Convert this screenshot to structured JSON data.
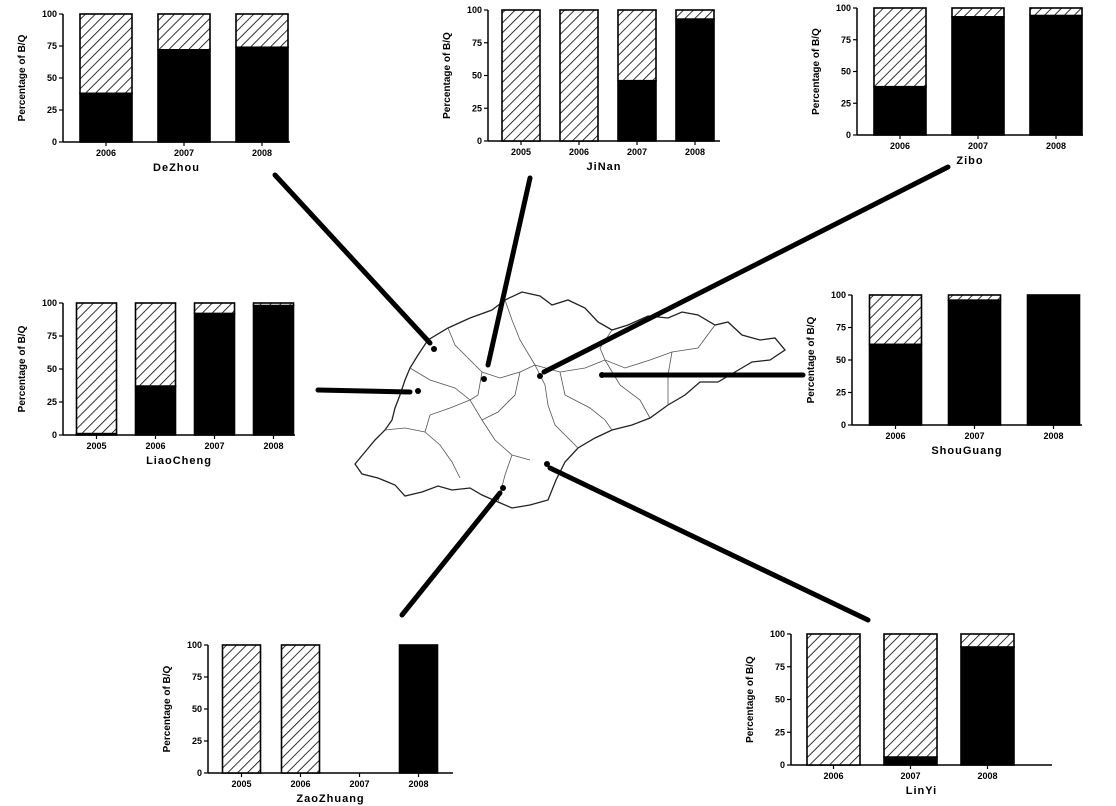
{
  "map": {
    "region": "Shandong province outline"
  },
  "legend_note": "",
  "chart_data": [
    {
      "type": "bar",
      "stacked": true,
      "title": "DeZhou",
      "ylabel": "Percentage of B/Q",
      "ylim": [
        0,
        100
      ],
      "yticks": [
        0,
        25,
        50,
        75,
        100
      ],
      "categories": [
        "2006",
        "2007",
        "2008"
      ],
      "series": [
        {
          "fill": "solid",
          "values": [
            38,
            72,
            74
          ]
        },
        {
          "fill": "hatched",
          "values": [
            62,
            28,
            26
          ]
        }
      ]
    },
    {
      "type": "bar",
      "stacked": true,
      "title": "JiNan",
      "ylabel": "Percentage of B/Q",
      "ylim": [
        0,
        100
      ],
      "yticks": [
        0,
        25,
        50,
        75,
        100
      ],
      "categories": [
        "2005",
        "2006",
        "2007",
        "2008"
      ],
      "series": [
        {
          "fill": "solid",
          "values": [
            0,
            0,
            46,
            93
          ]
        },
        {
          "fill": "hatched",
          "values": [
            100,
            100,
            54,
            7
          ]
        }
      ]
    },
    {
      "type": "bar",
      "stacked": true,
      "title": "Zibo",
      "ylabel": "Percentage of B/Q",
      "ylim": [
        0,
        100
      ],
      "yticks": [
        0,
        25,
        50,
        75,
        100
      ],
      "categories": [
        "2006",
        "2007",
        "2008"
      ],
      "series": [
        {
          "fill": "solid",
          "values": [
            38,
            93,
            94
          ]
        },
        {
          "fill": "hatched",
          "values": [
            62,
            7,
            6
          ]
        }
      ]
    },
    {
      "type": "bar",
      "stacked": true,
      "title": "LiaoCheng",
      "ylabel": "Percentage of B/Q",
      "ylim": [
        0,
        100
      ],
      "yticks": [
        0,
        25,
        50,
        75,
        100
      ],
      "categories": [
        "2005",
        "2006",
        "2007",
        "2008"
      ],
      "series": [
        {
          "fill": "solid",
          "values": [
            1,
            37,
            92,
            98
          ]
        },
        {
          "fill": "hatched",
          "values": [
            99,
            63,
            8,
            2
          ]
        }
      ]
    },
    {
      "type": "bar",
      "stacked": true,
      "title": "ShouGuang",
      "ylabel": "Percentage of B/Q",
      "ylim": [
        0,
        100
      ],
      "yticks": [
        0,
        25,
        50,
        75,
        100
      ],
      "categories": [
        "2006",
        "2007",
        "2008"
      ],
      "series": [
        {
          "fill": "solid",
          "values": [
            62,
            96,
            100
          ]
        },
        {
          "fill": "hatched",
          "values": [
            38,
            4,
            0
          ]
        }
      ]
    },
    {
      "type": "bar",
      "stacked": true,
      "title": "ZaoZhuang",
      "ylabel": "Percentage of B/Q",
      "ylim": [
        0,
        100
      ],
      "yticks": [
        0,
        25,
        50,
        75,
        100
      ],
      "categories": [
        "2005",
        "2006",
        "2007",
        "2008"
      ],
      "series": [
        {
          "fill": "solid",
          "values": [
            0,
            0,
            0,
            100
          ]
        },
        {
          "fill": "hatched",
          "values": [
            100,
            100,
            0,
            0
          ]
        }
      ]
    },
    {
      "type": "bar",
      "stacked": true,
      "title": "LinYi",
      "ylabel": "Percentage of B/Q",
      "ylim": [
        0,
        100
      ],
      "yticks": [
        0,
        25,
        50,
        75,
        100
      ],
      "categories": [
        "2006",
        "2007",
        "2008"
      ],
      "series": [
        {
          "fill": "solid",
          "values": [
            0,
            6,
            90
          ]
        },
        {
          "fill": "hatched",
          "values": [
            100,
            94,
            10
          ]
        }
      ]
    }
  ]
}
